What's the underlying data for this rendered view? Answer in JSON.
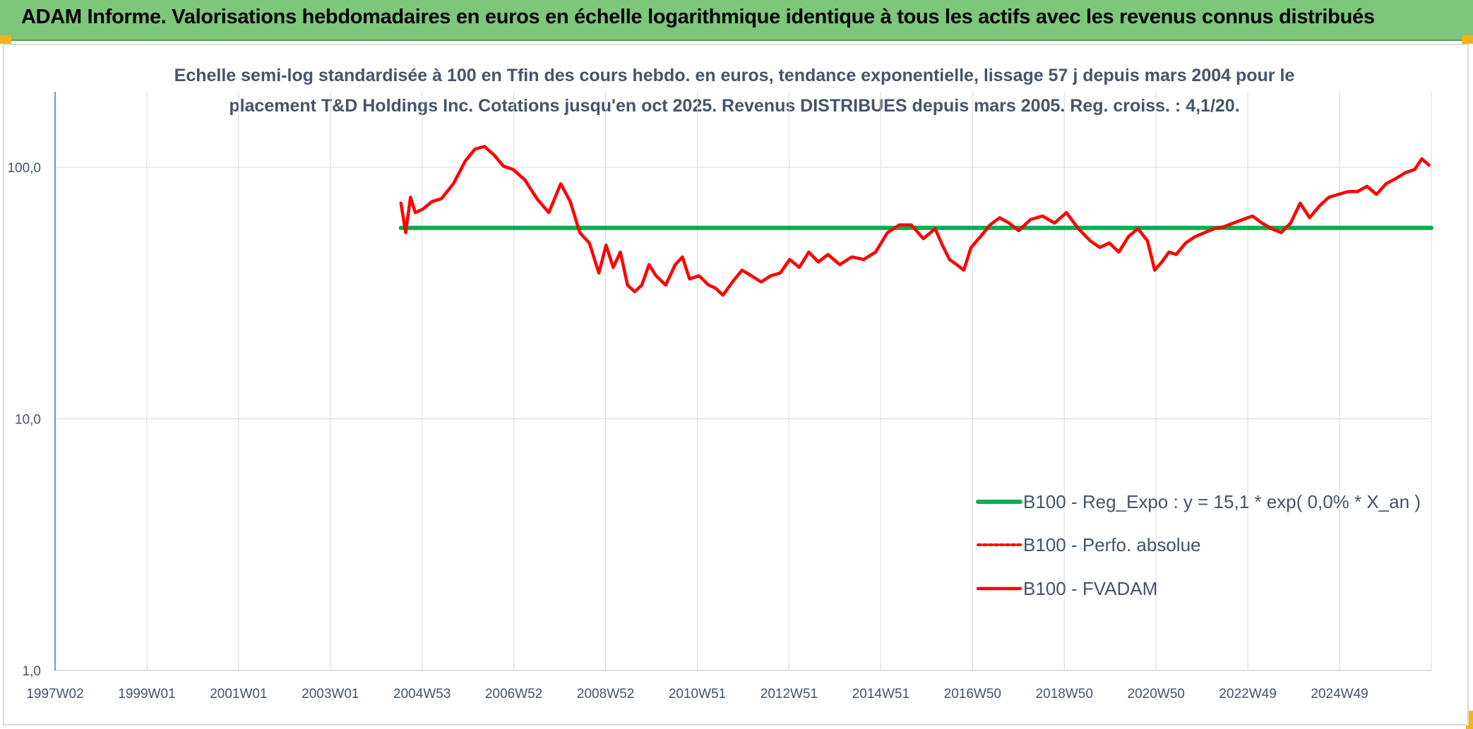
{
  "header": {
    "title": "ADAM Informe. Valorisations hebdomadaires en euros en échelle logarithmique identique à tous les actifs avec les revenus connus distribués"
  },
  "chart_data": {
    "type": "line",
    "subtitle_line1": "Echelle semi-log standardisée à 100 en Tfin des cours hebdo. en euros, tendance exponentielle, lissage 57 j depuis mars 2004 pour le",
    "subtitle_line2": "placement T&D Holdings Inc. Cotations jusqu'en oct 2025. Revenus DISTRIBUES depuis mars 2005. Reg. croiss. : 4,1/20.",
    "yscale": "log",
    "ylim": [
      1,
      200
    ],
    "y_ticks": [
      "100,0",
      "10,0",
      "1,0"
    ],
    "xlim": [
      1997.0,
      2025.85
    ],
    "x_ticks": [
      "1997W02",
      "1999W01",
      "2001W01",
      "2003W01",
      "2004W53",
      "2006W52",
      "2008W52",
      "2010W51",
      "2012W51",
      "2014W51",
      "2016W50",
      "2018W50",
      "2020W50",
      "2022W49",
      "2024W49"
    ],
    "grid": "vertical",
    "legend_position": "bottom-right",
    "colors": {
      "reg": "#00b050",
      "fvadam": "#ff0000",
      "perfo": "#ff0000",
      "axis": "#4472c4",
      "grid": "#d9d9d9"
    },
    "series": [
      {
        "name": "B100 - Reg_Expo : y = 15,1 * exp( 0,0% *  X_an )",
        "style": "solid-green",
        "x": [
          2004.25,
          2025.85
        ],
        "y": [
          57.4,
          57.4
        ]
      },
      {
        "name": "B100 - Perfo. absolue",
        "style": "dotted-red",
        "x": [],
        "y": []
      },
      {
        "name": "B100 - FVADAM",
        "style": "solid-red",
        "x": [
          2004.25,
          2004.35,
          2004.45,
          2004.55,
          2004.7,
          2004.9,
          2005.1,
          2005.35,
          2005.6,
          2005.8,
          2006.0,
          2006.2,
          2006.4,
          2006.6,
          2006.85,
          2007.1,
          2007.35,
          2007.6,
          2007.8,
          2008.0,
          2008.2,
          2008.4,
          2008.55,
          2008.7,
          2008.85,
          2009.0,
          2009.15,
          2009.3,
          2009.45,
          2009.6,
          2009.8,
          2010.0,
          2010.15,
          2010.3,
          2010.5,
          2010.7,
          2010.85,
          2011.0,
          2011.2,
          2011.4,
          2011.6,
          2011.8,
          2012.0,
          2012.2,
          2012.4,
          2012.6,
          2012.8,
          2013.0,
          2013.2,
          2013.45,
          2013.7,
          2013.95,
          2014.2,
          2014.45,
          2014.7,
          2014.95,
          2015.2,
          2015.45,
          2015.6,
          2015.75,
          2015.9,
          2016.05,
          2016.2,
          2016.4,
          2016.6,
          2016.8,
          2017.0,
          2017.2,
          2017.45,
          2017.7,
          2017.95,
          2018.2,
          2018.45,
          2018.7,
          2018.9,
          2019.1,
          2019.3,
          2019.5,
          2019.7,
          2019.9,
          2020.05,
          2020.2,
          2020.35,
          2020.5,
          2020.7,
          2020.9,
          2021.1,
          2021.3,
          2021.5,
          2021.7,
          2021.9,
          2022.1,
          2022.3,
          2022.5,
          2022.7,
          2022.9,
          2023.1,
          2023.3,
          2023.5,
          2023.7,
          2023.9,
          2024.1,
          2024.3,
          2024.5,
          2024.7,
          2024.9,
          2025.1,
          2025.3,
          2025.5,
          2025.65,
          2025.8
        ],
        "y": [
          72,
          55,
          76,
          66,
          68,
          73,
          75,
          86,
          106,
          118,
          121,
          112,
          101,
          98,
          89,
          75,
          66,
          86,
          73,
          55,
          50,
          38,
          49,
          40,
          46,
          34,
          32,
          34,
          41,
          37,
          34,
          41,
          44,
          36,
          37,
          34,
          33,
          31,
          35,
          39,
          37,
          35,
          37,
          38,
          43,
          40,
          46,
          42,
          45,
          41,
          44,
          43,
          46,
          55,
          59,
          59,
          52,
          57,
          49,
          43,
          41,
          39,
          48,
          53,
          59,
          63,
          60,
          56,
          62,
          64,
          60,
          66,
          57,
          51,
          48,
          50,
          46,
          53,
          57,
          51,
          39,
          42,
          46,
          45,
          50,
          53,
          55,
          57,
          58,
          60,
          62,
          64,
          60,
          57,
          55,
          60,
          72,
          63,
          70,
          76,
          78,
          80,
          80,
          84,
          78,
          86,
          90,
          95,
          98,
          108,
          102
        ]
      }
    ]
  }
}
